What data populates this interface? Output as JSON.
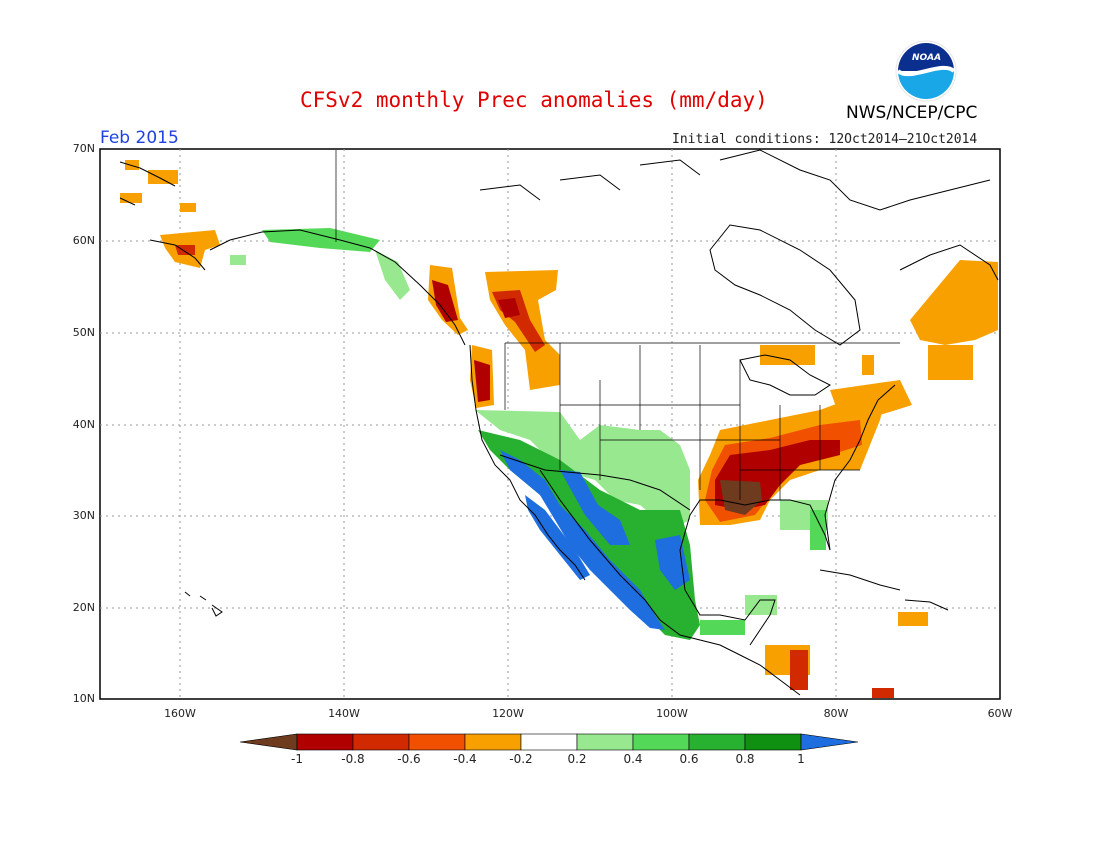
{
  "title": "CFSv2 monthly Prec anomalies (mm/day)",
  "month": "Feb 2015",
  "initial_conditions": "Initial conditions: 12Oct2014–21Oct2014",
  "agency": "NWS/NCEP/CPC",
  "logo_text": "NOAA",
  "lat_labels": [
    "70N",
    "60N",
    "50N",
    "40N",
    "30N",
    "20N",
    "10N"
  ],
  "lon_labels": [
    "160W",
    "140W",
    "120W",
    "100W",
    "80W",
    "60W"
  ],
  "colorbar": {
    "labels": [
      "-1",
      "-0.8",
      "-0.6",
      "-0.4",
      "-0.2",
      "0.2",
      "0.4",
      "0.6",
      "0.8",
      "1"
    ],
    "colors": [
      "#6e3b1e",
      "#b00000",
      "#d22a00",
      "#f05000",
      "#f7a000",
      "#ffffff",
      "#98e890",
      "#54d858",
      "#28b030",
      "#109010",
      "#1e6ee0"
    ]
  },
  "legend_classes": {
    "very_dry": "#6e3b1e",
    "dry_08": "#b00000",
    "dry_06": "#d22a00",
    "dry_04": "#f05000",
    "dry_02": "#f7a000",
    "wet_04": "#98e890",
    "wet_06": "#54d858",
    "wet_08": "#28b030",
    "wet_10": "#109010",
    "very_wet": "#1e6ee0"
  }
}
